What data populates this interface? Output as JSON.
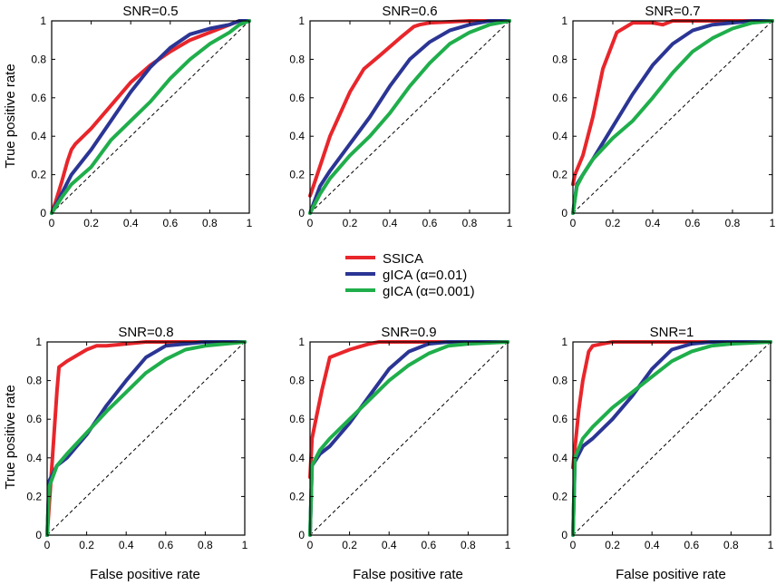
{
  "colors": {
    "ssica": "#e8262b",
    "gica_001": "#2b3594",
    "gica_0001": "#1fae4b",
    "axis": "#000000",
    "chance": "#000000"
  },
  "legend": {
    "entries": [
      "SSICA",
      "gICA (α=0.01)",
      "gICA (α=0.001)"
    ]
  },
  "axes": {
    "xlabel": "False positive rate",
    "ylabel": "True positive rate"
  },
  "chart_data": [
    {
      "type": "line",
      "title": "SNR=0.5",
      "xlim": [
        0,
        1
      ],
      "ylim": [
        0,
        1
      ],
      "xticks": [
        "0",
        "0.2",
        "0.4",
        "0.6",
        "0.8",
        "1"
      ],
      "yticks": [
        "0",
        "0.2",
        "0.4",
        "0.6",
        "0.8",
        "1"
      ],
      "series": [
        {
          "name": "SSICA",
          "x": [
            0,
            0.02,
            0.05,
            0.08,
            0.1,
            0.12,
            0.2,
            0.3,
            0.4,
            0.5,
            0.6,
            0.7,
            0.8,
            0.9,
            0.95,
            1
          ],
          "y": [
            0,
            0.06,
            0.16,
            0.27,
            0.33,
            0.36,
            0.44,
            0.56,
            0.68,
            0.77,
            0.84,
            0.9,
            0.94,
            0.98,
            1,
            1
          ]
        },
        {
          "name": "gICA (α=0.01)",
          "x": [
            0,
            0.05,
            0.1,
            0.2,
            0.3,
            0.4,
            0.5,
            0.6,
            0.7,
            0.8,
            0.9,
            0.95,
            1
          ],
          "y": [
            0,
            0.1,
            0.2,
            0.33,
            0.48,
            0.63,
            0.76,
            0.86,
            0.93,
            0.96,
            0.98,
            1,
            1
          ]
        },
        {
          "name": "gICA (α=0.001)",
          "x": [
            0,
            0.05,
            0.1,
            0.2,
            0.3,
            0.4,
            0.5,
            0.6,
            0.7,
            0.8,
            0.9,
            0.95,
            1
          ],
          "y": [
            0,
            0.08,
            0.15,
            0.24,
            0.38,
            0.48,
            0.58,
            0.7,
            0.8,
            0.88,
            0.94,
            0.98,
            1
          ]
        }
      ]
    },
    {
      "type": "line",
      "title": "SNR=0.6",
      "xlim": [
        0,
        1
      ],
      "ylim": [
        0,
        1
      ],
      "xticks": [
        "0",
        "0.2",
        "0.4",
        "0.6",
        "0.8",
        "1"
      ],
      "yticks": [
        "0",
        "0.2",
        "0.4",
        "0.6",
        "0.8",
        "1"
      ],
      "series": [
        {
          "name": "SSICA",
          "x": [
            0,
            0.02,
            0.1,
            0.2,
            0.27,
            0.35,
            0.45,
            0.52,
            0.55,
            0.6,
            0.8,
            1
          ],
          "y": [
            0.09,
            0.15,
            0.4,
            0.63,
            0.75,
            0.82,
            0.91,
            0.97,
            0.98,
            0.99,
            1,
            1
          ]
        },
        {
          "name": "gICA (α=0.01)",
          "x": [
            0,
            0.05,
            0.1,
            0.2,
            0.3,
            0.4,
            0.5,
            0.6,
            0.7,
            0.8,
            0.9,
            1
          ],
          "y": [
            0,
            0.14,
            0.22,
            0.36,
            0.5,
            0.66,
            0.8,
            0.89,
            0.95,
            0.98,
            1,
            1
          ]
        },
        {
          "name": "gICA (α=0.001)",
          "x": [
            0,
            0.05,
            0.1,
            0.2,
            0.3,
            0.4,
            0.5,
            0.6,
            0.7,
            0.8,
            0.9,
            1
          ],
          "y": [
            0,
            0.1,
            0.18,
            0.3,
            0.4,
            0.52,
            0.66,
            0.78,
            0.88,
            0.94,
            0.98,
            1
          ]
        }
      ]
    },
    {
      "type": "line",
      "title": "SNR=0.7",
      "xlim": [
        0,
        1
      ],
      "ylim": [
        0,
        1
      ],
      "xticks": [
        "0",
        "0.2",
        "0.4",
        "0.6",
        "0.8",
        "1"
      ],
      "yticks": [
        "0",
        "0.2",
        "0.4",
        "0.6",
        "0.8",
        "1"
      ],
      "series": [
        {
          "name": "SSICA",
          "x": [
            0,
            0.01,
            0.05,
            0.1,
            0.15,
            0.22,
            0.3,
            0.4,
            0.45,
            0.5,
            0.6,
            0.8,
            1
          ],
          "y": [
            0.15,
            0.2,
            0.3,
            0.5,
            0.75,
            0.94,
            0.99,
            0.99,
            0.98,
            1,
            1,
            1,
            1
          ]
        },
        {
          "name": "gICA (α=0.01)",
          "x": [
            0,
            0.02,
            0.05,
            0.1,
            0.2,
            0.3,
            0.4,
            0.5,
            0.6,
            0.7,
            0.8,
            0.9,
            1
          ],
          "y": [
            0,
            0.15,
            0.2,
            0.28,
            0.45,
            0.62,
            0.77,
            0.88,
            0.95,
            0.98,
            0.99,
            1,
            1
          ]
        },
        {
          "name": "gICA (α=0.001)",
          "x": [
            0,
            0.02,
            0.05,
            0.1,
            0.2,
            0.3,
            0.4,
            0.5,
            0.6,
            0.7,
            0.8,
            0.9,
            1
          ],
          "y": [
            0,
            0.14,
            0.2,
            0.28,
            0.39,
            0.48,
            0.6,
            0.73,
            0.84,
            0.91,
            0.96,
            0.99,
            1
          ]
        }
      ]
    },
    {
      "type": "line",
      "title": "SNR=0.8",
      "xlim": [
        0,
        1
      ],
      "ylim": [
        0,
        1
      ],
      "xticks": [
        "0",
        "0.2",
        "0.4",
        "0.6",
        "0.8",
        "1"
      ],
      "yticks": [
        "0",
        "0.2",
        "0.4",
        "0.6",
        "0.8",
        "1"
      ],
      "series": [
        {
          "name": "SSICA",
          "x": [
            0,
            0.02,
            0.05,
            0.06,
            0.1,
            0.2,
            0.25,
            0.3,
            0.4,
            0.5,
            0.6,
            0.8,
            1
          ],
          "y": [
            0,
            0.3,
            0.75,
            0.87,
            0.9,
            0.96,
            0.98,
            0.98,
            0.99,
            1,
            1,
            1,
            1
          ]
        },
        {
          "name": "gICA (α=0.01)",
          "x": [
            0,
            0.01,
            0.05,
            0.1,
            0.15,
            0.2,
            0.3,
            0.4,
            0.5,
            0.6,
            0.7,
            0.8,
            1
          ],
          "y": [
            0,
            0.28,
            0.36,
            0.4,
            0.46,
            0.52,
            0.67,
            0.8,
            0.92,
            0.98,
            0.99,
            1,
            1
          ]
        },
        {
          "name": "gICA (α=0.001)",
          "x": [
            0,
            0.01,
            0.05,
            0.1,
            0.2,
            0.3,
            0.4,
            0.5,
            0.6,
            0.7,
            0.8,
            1
          ],
          "y": [
            0,
            0.25,
            0.36,
            0.42,
            0.53,
            0.64,
            0.74,
            0.84,
            0.91,
            0.96,
            0.98,
            1
          ]
        }
      ]
    },
    {
      "type": "line",
      "title": "SNR=0.9",
      "xlim": [
        0,
        1
      ],
      "ylim": [
        0,
        1
      ],
      "xticks": [
        "0",
        "0.2",
        "0.4",
        "0.6",
        "0.8",
        "1"
      ],
      "yticks": [
        "0",
        "0.2",
        "0.4",
        "0.6",
        "0.8",
        "1"
      ],
      "series": [
        {
          "name": "SSICA",
          "x": [
            0,
            0.01,
            0.03,
            0.06,
            0.1,
            0.2,
            0.3,
            0.35,
            0.45,
            0.6,
            1
          ],
          "y": [
            0.3,
            0.5,
            0.6,
            0.75,
            0.92,
            0.96,
            0.99,
            1,
            1,
            1,
            1
          ]
        },
        {
          "name": "gICA (α=0.01)",
          "x": [
            0,
            0.01,
            0.05,
            0.1,
            0.2,
            0.3,
            0.4,
            0.5,
            0.6,
            0.7,
            1
          ],
          "y": [
            0,
            0.36,
            0.42,
            0.46,
            0.58,
            0.72,
            0.86,
            0.95,
            0.99,
            1,
            1
          ]
        },
        {
          "name": "gICA (α=0.001)",
          "x": [
            0,
            0.01,
            0.05,
            0.1,
            0.2,
            0.3,
            0.4,
            0.5,
            0.6,
            0.7,
            0.8,
            1
          ],
          "y": [
            0,
            0.36,
            0.44,
            0.5,
            0.6,
            0.7,
            0.8,
            0.88,
            0.94,
            0.98,
            0.99,
            1
          ]
        }
      ]
    },
    {
      "type": "line",
      "title": "SNR=1",
      "xlim": [
        0,
        1
      ],
      "ylim": [
        0,
        1
      ],
      "xticks": [
        "0",
        "0.2",
        "0.4",
        "0.6",
        "0.8",
        "1"
      ],
      "yticks": [
        "0",
        "0.2",
        "0.4",
        "0.6",
        "0.8",
        "1"
      ],
      "series": [
        {
          "name": "SSICA",
          "x": [
            0,
            0.01,
            0.03,
            0.05,
            0.08,
            0.1,
            0.15,
            0.2,
            0.3,
            0.5,
            1
          ],
          "y": [
            0.35,
            0.45,
            0.65,
            0.8,
            0.95,
            0.98,
            0.99,
            1,
            1,
            1,
            1
          ]
        },
        {
          "name": "gICA (α=0.01)",
          "x": [
            0,
            0.01,
            0.05,
            0.1,
            0.2,
            0.3,
            0.4,
            0.5,
            0.6,
            0.7,
            1
          ],
          "y": [
            0,
            0.38,
            0.46,
            0.5,
            0.6,
            0.72,
            0.86,
            0.96,
            0.99,
            1,
            1
          ]
        },
        {
          "name": "gICA (α=0.001)",
          "x": [
            0,
            0.01,
            0.05,
            0.1,
            0.2,
            0.3,
            0.4,
            0.5,
            0.6,
            0.7,
            0.8,
            1
          ],
          "y": [
            0,
            0.4,
            0.5,
            0.56,
            0.66,
            0.74,
            0.82,
            0.9,
            0.95,
            0.98,
            0.99,
            1
          ]
        }
      ]
    }
  ]
}
